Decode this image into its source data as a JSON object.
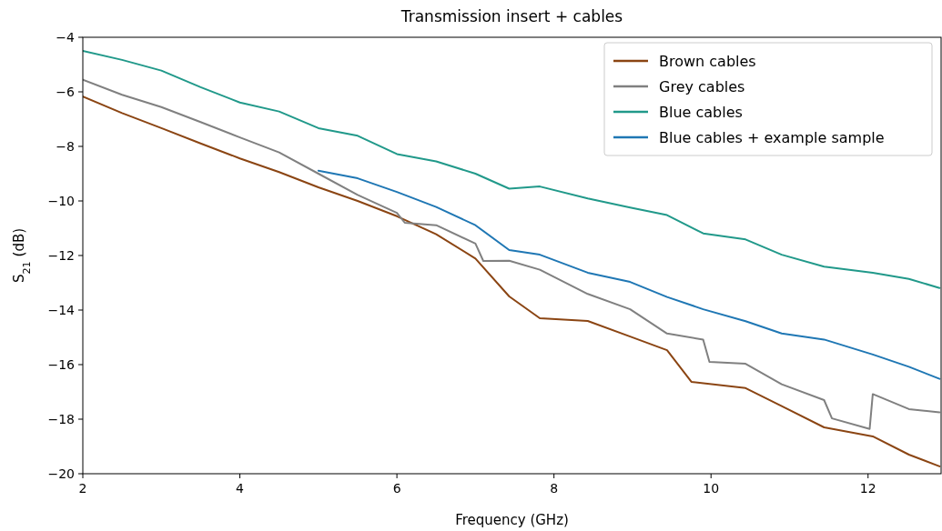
{
  "chart_data": {
    "type": "line",
    "title": "Transmission insert + cables",
    "xlabel": "Frequency (GHz)",
    "ylabel": "S$_{21}$ (dB)",
    "xlim": [
      2,
      12.93
    ],
    "xticks": [
      2,
      4,
      6,
      8,
      10,
      12
    ],
    "ylim": [
      -20,
      -4
    ],
    "yticks": [
      -20,
      -18,
      -16,
      -14,
      -12,
      -10,
      -8,
      -6,
      -4
    ],
    "grid": false,
    "legend": "top right",
    "line_style": "solid",
    "marker": "none",
    "series": [
      {
        "name": "Brown cables",
        "color": "#8b4513",
        "x": [
          2,
          2.5,
          3,
          3.5,
          4,
          4.5,
          5,
          5.5,
          6,
          6.5,
          7,
          7.43,
          7.82,
          8.43,
          8.97,
          9.44,
          9.75,
          10.44,
          10.9,
          11.44,
          12.06,
          12.52,
          12.91
        ],
        "values": [
          -6.17,
          -6.78,
          -7.33,
          -7.89,
          -8.44,
          -8.94,
          -9.5,
          -10.0,
          -10.56,
          -11.22,
          -12.11,
          -13.5,
          -14.3,
          -14.4,
          -14.97,
          -15.47,
          -16.63,
          -16.86,
          -17.52,
          -18.3,
          -18.63,
          -19.3,
          -19.73
        ]
      },
      {
        "name": "Grey cables",
        "color": "#808080",
        "x": [
          2,
          2.5,
          3,
          3.5,
          4,
          4.5,
          5,
          5.5,
          6,
          6.1,
          6.5,
          7,
          7.1,
          7.43,
          7.82,
          8.43,
          8.97,
          9.44,
          9.9,
          9.98,
          10.44,
          10.9,
          11.44,
          11.54,
          12.02,
          12.06,
          12.52,
          12.91
        ],
        "values": [
          -5.56,
          -6.11,
          -6.56,
          -7.11,
          -7.67,
          -8.22,
          -9.0,
          -9.78,
          -10.44,
          -10.8,
          -10.89,
          -11.56,
          -12.2,
          -12.19,
          -12.52,
          -13.41,
          -13.97,
          -14.86,
          -15.08,
          -15.9,
          -15.97,
          -16.72,
          -17.3,
          -17.97,
          -18.36,
          -17.08,
          -17.63,
          -17.75
        ]
      },
      {
        "name": "Blue cables",
        "color": "#21998a",
        "x": [
          2,
          2.5,
          3,
          3.5,
          4,
          4.5,
          5,
          5.5,
          6,
          6.5,
          7,
          7.43,
          7.82,
          8.43,
          8.97,
          9.44,
          9.9,
          10.44,
          10.9,
          11.44,
          12.06,
          12.52,
          12.91
        ],
        "values": [
          -4.5,
          -4.83,
          -5.22,
          -5.83,
          -6.39,
          -6.72,
          -7.33,
          -7.61,
          -8.28,
          -8.55,
          -9.0,
          -9.55,
          -9.47,
          -9.91,
          -10.24,
          -10.52,
          -11.19,
          -11.41,
          -11.97,
          -12.41,
          -12.63,
          -12.86,
          -13.19
        ]
      },
      {
        "name": "Blue cables + example sample",
        "color": "#1f77b4",
        "x": [
          5,
          5.5,
          6,
          6.5,
          7,
          7.43,
          7.82,
          8.43,
          8.97,
          9.44,
          9.9,
          10.44,
          10.9,
          11.44,
          12.06,
          12.52,
          12.91
        ],
        "values": [
          -8.89,
          -9.17,
          -9.67,
          -10.22,
          -10.89,
          -11.8,
          -11.97,
          -12.63,
          -12.97,
          -13.52,
          -13.97,
          -14.41,
          -14.86,
          -15.08,
          -15.63,
          -16.08,
          -16.52
        ]
      }
    ]
  }
}
